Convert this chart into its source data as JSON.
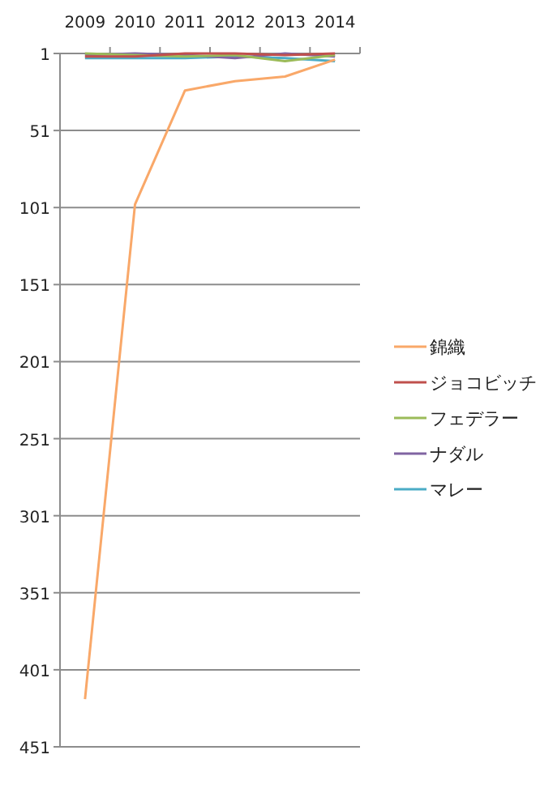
{
  "chart_data": {
    "type": "line",
    "categories": [
      "2009",
      "2010",
      "2011",
      "2012",
      "2013",
      "2014"
    ],
    "ylim": [
      451,
      1
    ],
    "yticks": [
      1,
      51,
      101,
      151,
      201,
      251,
      301,
      351,
      401,
      451
    ],
    "grid": "y",
    "legend": "right",
    "marker": "none",
    "line_style": "solid",
    "series": [
      {
        "name": "錦織",
        "color": "#f9a869",
        "values": [
          420,
          99,
          25,
          19,
          16,
          5
        ]
      },
      {
        "name": "ジョコビッチ",
        "color": "#c0504d",
        "values": [
          3,
          3,
          1,
          1,
          2,
          1
        ]
      },
      {
        "name": "フェデラー",
        "color": "#9bbb59",
        "values": [
          1,
          2,
          3,
          2,
          6,
          2
        ]
      },
      {
        "name": "ナダル",
        "color": "#8064a2",
        "values": [
          2,
          1,
          2,
          4,
          1,
          3
        ]
      },
      {
        "name": "マレー",
        "color": "#4bacc6",
        "values": [
          4,
          4,
          4,
          3,
          4,
          6
        ]
      }
    ]
  }
}
